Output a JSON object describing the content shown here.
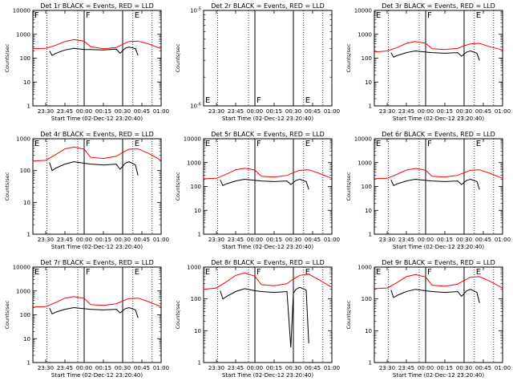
{
  "chart_data": [
    {
      "type": "line",
      "title": "Det 1r BLACK = Events, RED = LLD",
      "xlabel": "Start Time (02-Dec-12 23:20:40)",
      "ylabel": "Counts/sec",
      "x_ticks": [
        "23:30",
        "23:45",
        "00:00",
        "00:15",
        "00:30",
        "00:45",
        "01:00"
      ],
      "yscale": "log",
      "ylim": [
        1,
        10000
      ],
      "y_ticks": [
        "1",
        "10",
        "100",
        "1000",
        "10000"
      ],
      "flags": [
        "F",
        "F",
        "E"
      ],
      "series": [
        {
          "color": "#ff0000",
          "x": [
            "23:20",
            "23:30",
            "23:38",
            "23:45",
            "23:52",
            "00:00",
            "00:05",
            "00:15",
            "00:25",
            "00:30",
            "00:35",
            "00:42",
            "00:50",
            "01:00"
          ],
          "values": [
            250,
            260,
            350,
            500,
            600,
            520,
            300,
            250,
            280,
            380,
            500,
            520,
            400,
            250
          ]
        },
        {
          "color": "#000000",
          "x": [
            "23:33",
            "23:35",
            "23:38",
            "23:45",
            "23:52",
            "00:00",
            "00:05",
            "00:15",
            "00:25",
            "00:28",
            "00:32",
            "00:35",
            "00:40",
            "00:42"
          ],
          "values": [
            200,
            130,
            160,
            220,
            260,
            230,
            230,
            220,
            240,
            160,
            260,
            290,
            250,
            130
          ]
        }
      ]
    },
    {
      "type": "line",
      "title": "Det 2r BLACK = Events, RED = LLD",
      "xlabel": "Start Time (02-Dec-12 23:20:40)",
      "ylabel": "Counts/sec",
      "x_ticks": [
        "23:30",
        "23:45",
        "00:00",
        "00:15",
        "00:30",
        "00:45",
        "01:00"
      ],
      "yscale": "log",
      "ylim": [
        1e-06,
        1e-05
      ],
      "y_ticks": [
        "10^-6",
        "10^-5"
      ],
      "flags": [
        "E",
        "F",
        "E"
      ],
      "series": []
    },
    {
      "type": "line",
      "title": "Det 3r BLACK = Events, RED = LLD",
      "xlabel": "Start Time (02-Dec-12 23:20:40)",
      "ylabel": "Counts/sec",
      "x_ticks": [
        "23:30",
        "23:45",
        "00:00",
        "00:15",
        "00:30",
        "00:45",
        "01:00"
      ],
      "yscale": "log",
      "ylim": [
        1,
        10000
      ],
      "y_ticks": [
        "1",
        "10",
        "100",
        "1000",
        "10000"
      ],
      "flags": [
        "E",
        "F",
        "E"
      ],
      "series": [
        {
          "color": "#ff0000",
          "x": [
            "23:20",
            "23:30",
            "23:38",
            "23:45",
            "23:52",
            "00:00",
            "00:05",
            "00:15",
            "00:25",
            "00:30",
            "00:35",
            "00:42",
            "00:50",
            "01:00"
          ],
          "values": [
            180,
            200,
            280,
            420,
            500,
            420,
            250,
            230,
            260,
            330,
            400,
            420,
            300,
            220
          ]
        },
        {
          "color": "#000000",
          "x": [
            "23:33",
            "23:35",
            "23:38",
            "23:45",
            "23:52",
            "00:00",
            "00:05",
            "00:15",
            "00:25",
            "00:28",
            "00:32",
            "00:35",
            "00:40",
            "00:42"
          ],
          "values": [
            170,
            110,
            130,
            170,
            200,
            180,
            170,
            160,
            170,
            120,
            180,
            200,
            160,
            80
          ]
        }
      ]
    },
    {
      "type": "line",
      "title": "Det 4r BLACK = Events, RED = LLD",
      "xlabel": "Start Time (02-Dec-12 23:20:40)",
      "ylabel": "Counts/sec",
      "x_ticks": [
        "23:30",
        "23:45",
        "00:00",
        "00:15",
        "00:30",
        "00:45",
        "01:00"
      ],
      "yscale": "log",
      "ylim": [
        1,
        1000
      ],
      "y_ticks": [
        "1",
        "10",
        "100",
        "1000"
      ],
      "flags": [
        "E",
        "F",
        "E"
      ],
      "series": [
        {
          "color": "#ff0000",
          "x": [
            "23:20",
            "23:30",
            "23:38",
            "23:45",
            "23:52",
            "00:00",
            "00:05",
            "00:15",
            "00:25",
            "00:30",
            "00:35",
            "00:42",
            "00:50",
            "01:00"
          ],
          "values": [
            200,
            210,
            320,
            480,
            550,
            470,
            260,
            240,
            280,
            370,
            470,
            480,
            350,
            210
          ]
        },
        {
          "color": "#000000",
          "x": [
            "23:33",
            "23:35",
            "23:38",
            "23:45",
            "23:52",
            "00:00",
            "00:05",
            "00:15",
            "00:25",
            "00:28",
            "00:32",
            "00:35",
            "00:40",
            "00:42"
          ],
          "values": [
            180,
            100,
            120,
            160,
            190,
            170,
            160,
            150,
            160,
            110,
            170,
            190,
            150,
            70
          ]
        }
      ]
    },
    {
      "type": "line",
      "title": "Det 5r BLACK = Events, RED = LLD",
      "xlabel": "Start Time (02-Dec-12 23:20:40)",
      "ylabel": "Counts/sec",
      "x_ticks": [
        "23:30",
        "23:45",
        "00:00",
        "00:15",
        "00:30",
        "00:45",
        "01:00"
      ],
      "yscale": "log",
      "ylim": [
        1,
        10000
      ],
      "y_ticks": [
        "1",
        "10",
        "100",
        "1000",
        "10000"
      ],
      "flags": [
        "E",
        "F",
        "E"
      ],
      "series": [
        {
          "color": "#ff0000",
          "x": [
            "23:20",
            "23:30",
            "23:38",
            "23:45",
            "23:52",
            "00:00",
            "00:05",
            "00:15",
            "00:25",
            "00:30",
            "00:35",
            "00:42",
            "00:50",
            "01:00"
          ],
          "values": [
            210,
            220,
            330,
            500,
            580,
            490,
            270,
            250,
            290,
            380,
            480,
            500,
            360,
            220
          ]
        },
        {
          "color": "#000000",
          "x": [
            "23:33",
            "23:35",
            "23:38",
            "23:45",
            "23:52",
            "00:00",
            "00:05",
            "00:15",
            "00:25",
            "00:28",
            "00:32",
            "00:35",
            "00:40",
            "00:42"
          ],
          "values": [
            190,
            110,
            130,
            170,
            200,
            180,
            170,
            160,
            170,
            120,
            180,
            200,
            160,
            75
          ]
        }
      ]
    },
    {
      "type": "line",
      "title": "Det 6r BLACK = Events, RED = LLD",
      "xlabel": "Start Time (02-Dec-12 23:20:40)",
      "ylabel": "Counts/sec",
      "x_ticks": [
        "23:30",
        "23:45",
        "00:00",
        "00:15",
        "00:30",
        "00:45",
        "01:00"
      ],
      "yscale": "log",
      "ylim": [
        1,
        10000
      ],
      "y_ticks": [
        "1",
        "10",
        "100",
        "1000",
        "10000"
      ],
      "flags": [
        "E",
        "F",
        "E"
      ],
      "series": [
        {
          "color": "#ff0000",
          "x": [
            "23:20",
            "23:30",
            "23:38",
            "23:45",
            "23:52",
            "00:00",
            "00:05",
            "00:15",
            "00:25",
            "00:30",
            "00:35",
            "00:42",
            "00:50",
            "01:00"
          ],
          "values": [
            210,
            220,
            330,
            490,
            570,
            480,
            270,
            250,
            290,
            380,
            480,
            500,
            360,
            220
          ]
        },
        {
          "color": "#000000",
          "x": [
            "23:33",
            "23:35",
            "23:38",
            "23:45",
            "23:52",
            "00:00",
            "00:05",
            "00:15",
            "00:25",
            "00:28",
            "00:32",
            "00:35",
            "00:40",
            "00:42"
          ],
          "values": [
            190,
            110,
            130,
            170,
            200,
            180,
            170,
            160,
            170,
            120,
            180,
            200,
            160,
            75
          ]
        }
      ]
    },
    {
      "type": "line",
      "title": "Det 7r BLACK = Events, RED = LLD",
      "xlabel": "Start Time (02-Dec-12 23:20:40)",
      "ylabel": "Counts/sec",
      "x_ticks": [
        "23:30",
        "23:45",
        "00:00",
        "00:15",
        "00:30",
        "00:45",
        "01:00"
      ],
      "yscale": "log",
      "ylim": [
        1,
        10000
      ],
      "y_ticks": [
        "1",
        "10",
        "100",
        "1000",
        "10000"
      ],
      "flags": [
        "E",
        "F",
        "E"
      ],
      "series": [
        {
          "color": "#ff0000",
          "x": [
            "23:20",
            "23:30",
            "23:38",
            "23:45",
            "23:52",
            "00:00",
            "00:05",
            "00:15",
            "00:25",
            "00:30",
            "00:35",
            "00:42",
            "00:50",
            "01:00"
          ],
          "values": [
            210,
            220,
            330,
            500,
            580,
            490,
            270,
            250,
            290,
            380,
            480,
            500,
            360,
            220
          ]
        },
        {
          "color": "#000000",
          "x": [
            "23:33",
            "23:35",
            "23:38",
            "23:45",
            "23:52",
            "00:00",
            "00:05",
            "00:15",
            "00:25",
            "00:28",
            "00:32",
            "00:35",
            "00:40",
            "00:42"
          ],
          "values": [
            190,
            110,
            130,
            170,
            200,
            180,
            170,
            160,
            170,
            120,
            180,
            200,
            160,
            75
          ]
        }
      ]
    },
    {
      "type": "line",
      "title": "Det 8r BLACK = Events, RED = LLD",
      "xlabel": "Start Time (02-Dec-12 23:20:40)",
      "ylabel": "Counts/sec",
      "x_ticks": [
        "23:30",
        "23:45",
        "00:00",
        "00:15",
        "00:30",
        "00:45",
        "01:00"
      ],
      "yscale": "log",
      "ylim": [
        1,
        1000
      ],
      "y_ticks": [
        "1",
        "10",
        "100",
        "1000"
      ],
      "flags": [
        "E",
        "F",
        "E"
      ],
      "series": [
        {
          "color": "#ff0000",
          "x": [
            "23:20",
            "23:30",
            "23:38",
            "23:45",
            "23:52",
            "00:00",
            "00:05",
            "00:15",
            "00:25",
            "00:30",
            "00:35",
            "00:42",
            "00:50",
            "01:00"
          ],
          "values": [
            200,
            220,
            350,
            550,
            650,
            520,
            280,
            260,
            300,
            420,
            550,
            600,
            400,
            230
          ]
        },
        {
          "color": "#000000",
          "x": [
            "23:33",
            "23:35",
            "23:38",
            "23:45",
            "23:52",
            "00:00",
            "00:05",
            "00:15",
            "00:25",
            "00:28",
            "00:30",
            "00:32",
            "00:35",
            "00:40",
            "00:42"
          ],
          "values": [
            180,
            100,
            120,
            170,
            210,
            180,
            170,
            160,
            170,
            3,
            150,
            200,
            230,
            190,
            4
          ]
        }
      ]
    },
    {
      "type": "line",
      "title": "Det 9r BLACK = Events, RED = LLD",
      "xlabel": "Start Time (02-Dec-12 23:20:40)",
      "ylabel": "Counts/sec",
      "x_ticks": [
        "23:30",
        "23:45",
        "00:00",
        "00:15",
        "00:30",
        "00:45",
        "01:00"
      ],
      "yscale": "log",
      "ylim": [
        1,
        1000
      ],
      "y_ticks": [
        "1",
        "10",
        "100",
        "1000"
      ],
      "flags": [
        "E",
        "F",
        "E"
      ],
      "series": [
        {
          "color": "#ff0000",
          "x": [
            "23:20",
            "23:30",
            "23:38",
            "23:45",
            "23:52",
            "00:00",
            "00:05",
            "00:15",
            "00:25",
            "00:30",
            "00:35",
            "00:42",
            "00:50",
            "01:00"
          ],
          "values": [
            210,
            220,
            330,
            500,
            580,
            490,
            270,
            250,
            290,
            380,
            480,
            500,
            360,
            220
          ]
        },
        {
          "color": "#000000",
          "x": [
            "23:33",
            "23:35",
            "23:38",
            "23:45",
            "23:52",
            "00:00",
            "00:05",
            "00:15",
            "00:25",
            "00:28",
            "00:32",
            "00:35",
            "00:40",
            "00:42"
          ],
          "values": [
            190,
            110,
            130,
            170,
            200,
            180,
            170,
            160,
            170,
            120,
            180,
            200,
            160,
            75
          ]
        }
      ]
    }
  ]
}
